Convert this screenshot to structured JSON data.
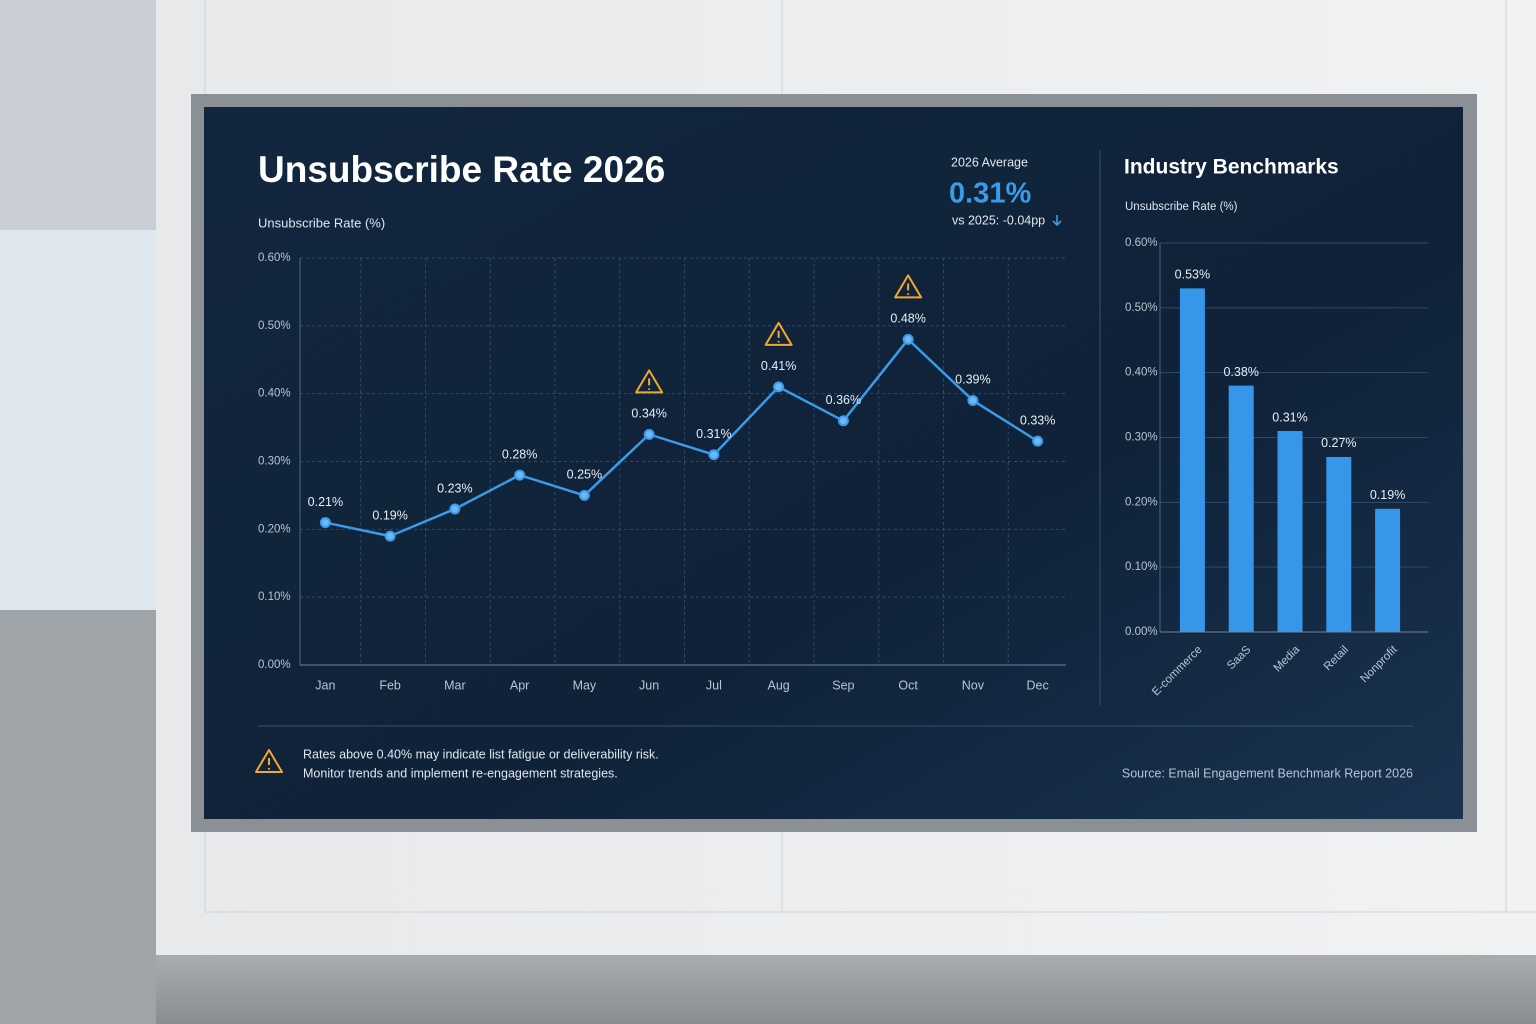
{
  "chart_data": [
    {
      "type": "line",
      "title": "Unsubscribe Rate 2026",
      "y_label": "Unsubscribe Rate (%)",
      "categories": [
        "Jan",
        "Feb",
        "Mar",
        "Apr",
        "May",
        "Jun",
        "Jul",
        "Aug",
        "Sep",
        "Oct",
        "Nov",
        "Dec"
      ],
      "values": [
        0.21,
        0.19,
        0.23,
        0.28,
        0.25,
        0.34,
        0.31,
        0.41,
        0.36,
        0.48,
        0.39,
        0.33
      ],
      "value_labels": [
        "0.21%",
        "0.19%",
        "0.23%",
        "0.28%",
        "0.25%",
        "0.34%",
        "0.31%",
        "0.41%",
        "0.36%",
        "0.48%",
        "0.39%",
        "0.33%"
      ],
      "warning_categories": [
        "Jun",
        "Aug",
        "Oct"
      ],
      "color": "#3a9be8",
      "grid": true,
      "ylim": [
        0,
        0.6
      ],
      "yticks": [
        {
          "value": 0,
          "label": "0.00%"
        },
        {
          "value": 0.1,
          "label": "0.10%"
        },
        {
          "value": 0.2,
          "label": "0.20%"
        },
        {
          "value": 0.3,
          "label": "0.30%"
        },
        {
          "value": 0.4,
          "label": "0.40%"
        },
        {
          "value": 0.5,
          "label": "0.50%"
        },
        {
          "value": 0.6,
          "label": "0.60%"
        }
      ]
    },
    {
      "type": "bar",
      "title": "Industry Benchmarks",
      "y_label": "Unsubscribe Rate (%)",
      "categories": [
        "E-commerce",
        "SaaS",
        "Media",
        "Retail",
        "Nonprofit"
      ],
      "values": [
        0.53,
        0.38,
        0.31,
        0.27,
        0.19
      ],
      "value_labels": [
        "0.53%",
        "0.38%",
        "0.31%",
        "0.27%",
        "0.19%"
      ],
      "color": "#3596ea",
      "grid": true,
      "ylim": [
        0,
        0.6
      ],
      "yticks": [
        {
          "value": 0,
          "label": "0.00%"
        },
        {
          "value": 0.1,
          "label": "0.10%"
        },
        {
          "value": 0.2,
          "label": "0.20%"
        },
        {
          "value": 0.3,
          "label": "0.30%"
        },
        {
          "value": 0.4,
          "label": "0.40%"
        },
        {
          "value": 0.5,
          "label": "0.50%"
        },
        {
          "value": 0.6,
          "label": "0.60%"
        }
      ]
    }
  ],
  "kpi": {
    "label": "2026 Average",
    "value": "0.31%",
    "comparison": "vs 2025: -0.04pp"
  },
  "footer": {
    "note_lines": [
      "Rates above 0.40% may indicate list fatigue or deliverability risk.",
      "Monitor trends and implement re-engagement strategies."
    ],
    "source": "Source: Email Engagement Benchmark Report 2026"
  }
}
